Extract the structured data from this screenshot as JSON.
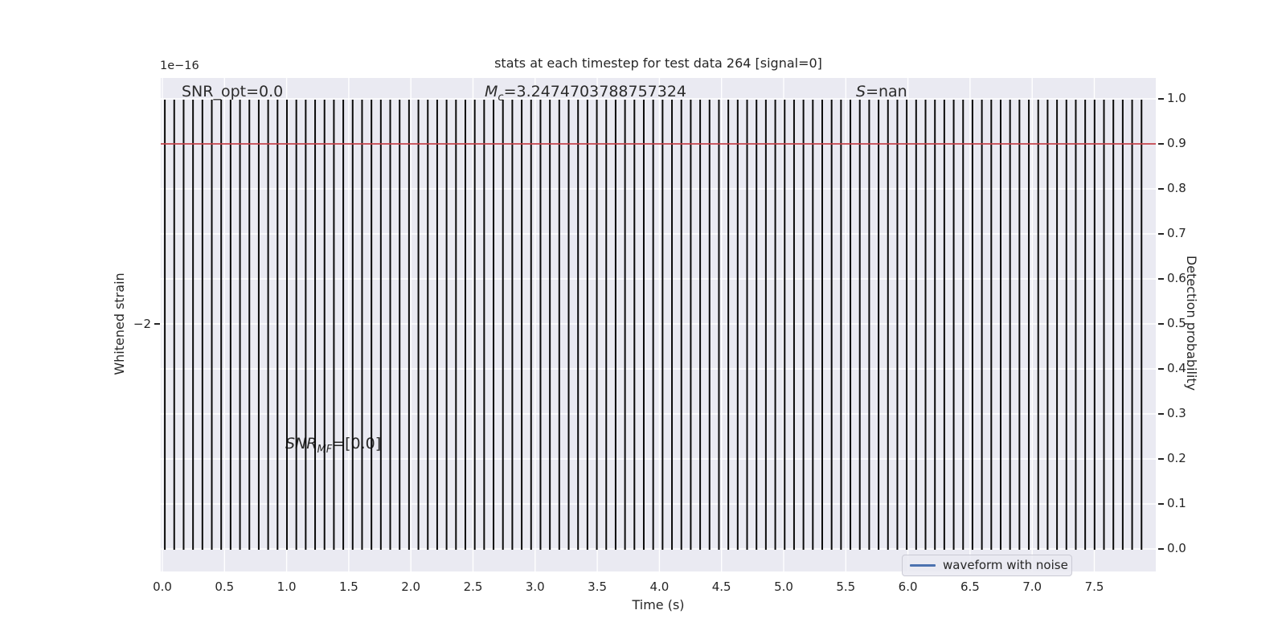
{
  "chart_data": {
    "type": "line",
    "title": "stats at each timestep for test data 264 [signal=0]",
    "xlabel": "Time (s)",
    "ylabel_left": "Whitened strain",
    "ylabel_right": "Detection probability",
    "background_color": "#eaeaf2",
    "grid": true,
    "grid_color": "#ffffff",
    "x_axis": {
      "range": [
        0,
        8
      ],
      "tick_values": [
        0,
        0.5,
        1,
        1.5,
        2,
        2.5,
        3,
        3.5,
        4,
        4.5,
        5,
        5.5,
        6,
        6.5,
        7,
        7.5
      ],
      "tick_labels": [
        "0.0",
        "0.5",
        "1.0",
        "1.5",
        "2.0",
        "2.5",
        "3.0",
        "3.5",
        "4.0",
        "4.5",
        "5.0",
        "5.5",
        "6.0",
        "6.5",
        "7.0",
        "7.5"
      ]
    },
    "left_axis": {
      "offset_text": "1e−16",
      "tick_labels": [
        "−2"
      ],
      "tick_values": [
        -2e-16
      ]
    },
    "right_axis": {
      "range": [
        0,
        1
      ],
      "tick_values": [
        0,
        0.1,
        0.2,
        0.3,
        0.4,
        0.5,
        0.6,
        0.7,
        0.8,
        0.9,
        1.0
      ],
      "tick_labels": [
        "0.0",
        "0.1",
        "0.2",
        "0.3",
        "0.4",
        "0.5",
        "0.6",
        "0.7",
        "0.8",
        "0.9",
        "1.0"
      ]
    },
    "threshold_line": {
      "value": 0.9,
      "color": "#c4444c"
    },
    "waveform": {
      "name": "waveform with noise",
      "color": "#0b0b0b",
      "appearance": "dense vertical oscillation filling full strain range",
      "n_cycles": 105,
      "t_start": 0.02,
      "t_end": 7.88
    },
    "series": [
      {
        "name": "waveform with noise",
        "color": "#4c72b0"
      }
    ],
    "legend": {
      "label": "waveform with noise",
      "line_color": "#4c72b0",
      "position": "lower right"
    },
    "annotations": {
      "snr_opt": {
        "plain": "SNR_opt=0.0"
      },
      "chirp_mass": {
        "math": "M",
        "sub": "c",
        "plain": "=3.2474703788757324"
      },
      "stat": {
        "math": "S",
        "plain": "=nan"
      },
      "snr_mf": {
        "math": "SNR",
        "sub": "MF",
        "plain": "=[0.0]"
      }
    }
  }
}
